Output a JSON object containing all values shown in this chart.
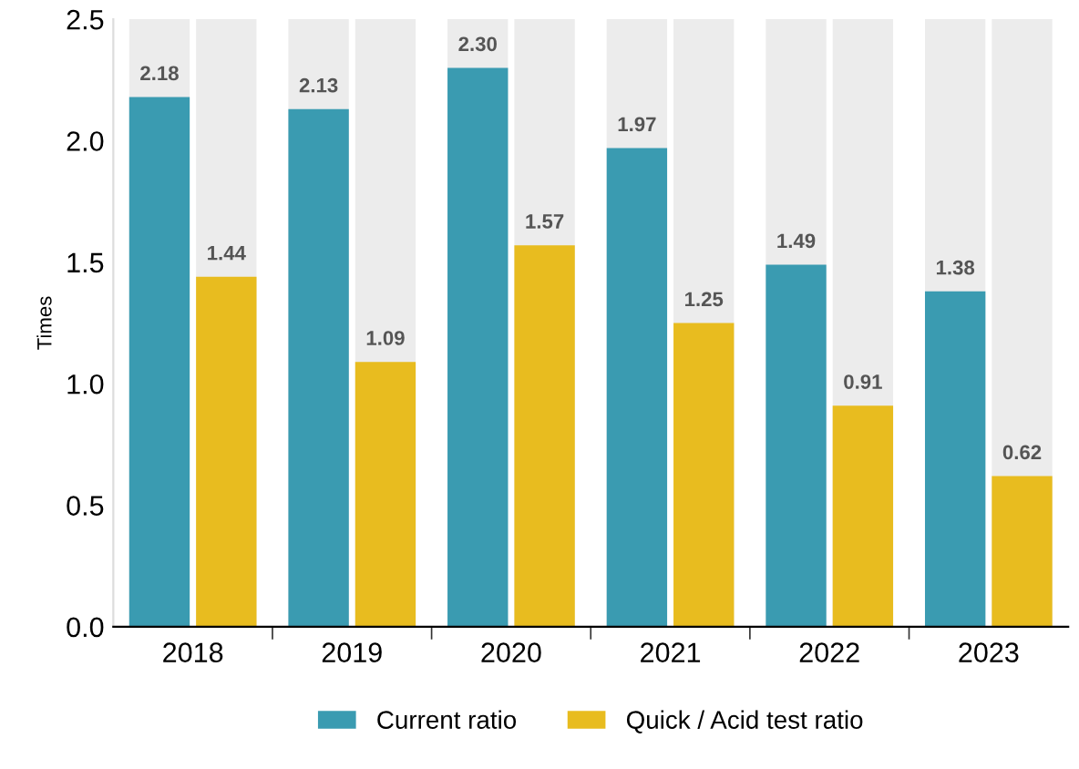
{
  "chart_data": {
    "type": "bar",
    "ylabel": "Times",
    "categories": [
      "2018",
      "2019",
      "2020",
      "2021",
      "2022",
      "2023"
    ],
    "series": [
      {
        "name": "Current ratio",
        "color": "#3a9bb1",
        "values": [
          2.18,
          2.13,
          2.3,
          1.97,
          1.49,
          1.38
        ],
        "value_labels": [
          "2.18",
          "2.13",
          "2.30",
          "1.97",
          "1.49",
          "1.38"
        ]
      },
      {
        "name": "Quick / Acid test ratio",
        "color": "#e8bc1f",
        "values": [
          1.44,
          1.09,
          1.57,
          1.25,
          0.91,
          0.62
        ],
        "value_labels": [
          "1.44",
          "1.09",
          "1.57",
          "1.25",
          "0.91",
          "0.62"
        ]
      }
    ],
    "ylim": [
      0,
      2.5
    ],
    "yticks": [
      {
        "value": 0,
        "label": "0.0"
      },
      {
        "value": 0.5,
        "label": "0.5"
      },
      {
        "value": 1,
        "label": "1.0"
      },
      {
        "value": 1.5,
        "label": "1.5"
      },
      {
        "value": 2,
        "label": "2.0"
      },
      {
        "value": 2.5,
        "label": "2.5"
      }
    ],
    "legend": "bottom",
    "grid": false
  }
}
